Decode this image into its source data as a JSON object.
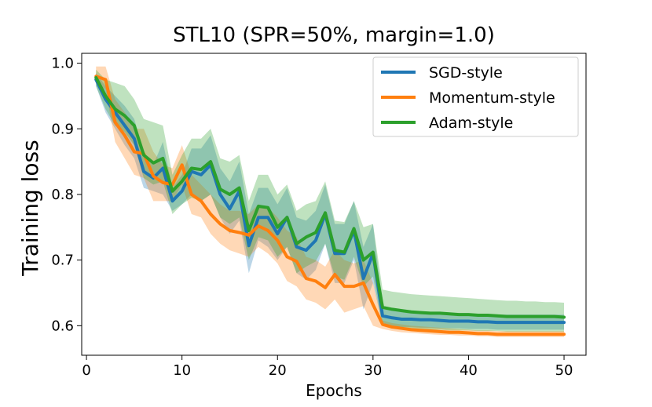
{
  "chart_data": {
    "type": "line",
    "title": "STL10 (SPR=50%, margin=1.0)",
    "xlabel": "Epochs",
    "ylabel": "Training loss",
    "xlim": [
      -0.5,
      52.3
    ],
    "ylim": [
      0.555,
      1.015
    ],
    "xticks": [
      0,
      10,
      20,
      30,
      40,
      50
    ],
    "yticks": [
      0.6,
      0.7,
      0.8,
      0.9,
      1.0
    ],
    "xtick_labels": [
      "0",
      "10",
      "20",
      "30",
      "40",
      "50"
    ],
    "ytick_labels": [
      "0.6",
      "0.7",
      "0.8",
      "0.9",
      "1.0"
    ],
    "grid": false,
    "legend_position": "top-right",
    "x": [
      1,
      2,
      3,
      4,
      5,
      6,
      7,
      8,
      9,
      10,
      11,
      12,
      13,
      14,
      15,
      16,
      17,
      18,
      19,
      20,
      21,
      22,
      23,
      24,
      25,
      26,
      27,
      28,
      29,
      30,
      31,
      32,
      33,
      34,
      35,
      36,
      37,
      38,
      39,
      40,
      41,
      42,
      43,
      44,
      45,
      46,
      47,
      48,
      49,
      50
    ],
    "series": [
      {
        "name": "SGD-style",
        "color": "#1f77b4",
        "values": [
          0.975,
          0.945,
          0.925,
          0.905,
          0.885,
          0.835,
          0.825,
          0.84,
          0.79,
          0.805,
          0.835,
          0.83,
          0.845,
          0.8,
          0.778,
          0.805,
          0.722,
          0.765,
          0.765,
          0.74,
          0.765,
          0.72,
          0.715,
          0.73,
          0.77,
          0.71,
          0.71,
          0.745,
          0.672,
          0.71,
          0.615,
          0.612,
          0.61,
          0.61,
          0.609,
          0.609,
          0.608,
          0.607,
          0.607,
          0.607,
          0.606,
          0.606,
          0.605,
          0.605,
          0.605,
          0.605,
          0.605,
          0.605,
          0.605,
          0.605
        ],
        "lower": [
          0.965,
          0.925,
          0.9,
          0.875,
          0.855,
          0.81,
          0.805,
          0.8,
          0.775,
          0.785,
          0.8,
          0.79,
          0.8,
          0.765,
          0.74,
          0.76,
          0.68,
          0.73,
          0.72,
          0.7,
          0.72,
          0.68,
          0.67,
          0.685,
          0.725,
          0.665,
          0.665,
          0.7,
          0.625,
          0.665,
          0.6,
          0.6,
          0.598,
          0.598,
          0.597,
          0.597,
          0.596,
          0.596,
          0.596,
          0.595,
          0.595,
          0.595,
          0.594,
          0.594,
          0.594,
          0.594,
          0.594,
          0.594,
          0.594,
          0.594
        ],
        "upper": [
          0.985,
          0.965,
          0.95,
          0.935,
          0.915,
          0.865,
          0.845,
          0.88,
          0.81,
          0.83,
          0.87,
          0.87,
          0.89,
          0.84,
          0.82,
          0.85,
          0.77,
          0.81,
          0.81,
          0.785,
          0.81,
          0.765,
          0.76,
          0.775,
          0.815,
          0.755,
          0.755,
          0.79,
          0.72,
          0.755,
          0.63,
          0.625,
          0.622,
          0.622,
          0.621,
          0.621,
          0.62,
          0.619,
          0.619,
          0.619,
          0.618,
          0.618,
          0.617,
          0.617,
          0.617,
          0.617,
          0.617,
          0.617,
          0.617,
          0.617
        ]
      },
      {
        "name": "Momentum-style",
        "color": "#ff7f0e",
        "values": [
          0.98,
          0.975,
          0.91,
          0.89,
          0.865,
          0.862,
          0.828,
          0.818,
          0.815,
          0.845,
          0.8,
          0.79,
          0.77,
          0.755,
          0.745,
          0.742,
          0.738,
          0.752,
          0.745,
          0.73,
          0.705,
          0.698,
          0.672,
          0.668,
          0.658,
          0.678,
          0.66,
          0.66,
          0.665,
          0.632,
          0.602,
          0.598,
          0.596,
          0.594,
          0.593,
          0.592,
          0.591,
          0.59,
          0.59,
          0.589,
          0.588,
          0.588,
          0.587,
          0.587,
          0.587,
          0.587,
          0.587,
          0.587,
          0.587,
          0.587
        ],
        "lower": [
          0.97,
          0.96,
          0.88,
          0.855,
          0.83,
          0.825,
          0.79,
          0.79,
          0.79,
          0.815,
          0.77,
          0.765,
          0.74,
          0.725,
          0.715,
          0.71,
          0.705,
          0.72,
          0.71,
          0.695,
          0.668,
          0.66,
          0.64,
          0.635,
          0.625,
          0.64,
          0.62,
          0.625,
          0.63,
          0.6,
          0.595,
          0.592,
          0.59,
          0.589,
          0.588,
          0.587,
          0.586,
          0.586,
          0.585,
          0.585,
          0.584,
          0.584,
          0.583,
          0.583,
          0.583,
          0.583,
          0.583,
          0.583,
          0.583,
          0.583
        ],
        "upper": [
          0.995,
          0.995,
          0.945,
          0.925,
          0.9,
          0.9,
          0.865,
          0.845,
          0.84,
          0.875,
          0.83,
          0.815,
          0.8,
          0.785,
          0.775,
          0.775,
          0.77,
          0.785,
          0.78,
          0.765,
          0.745,
          0.735,
          0.705,
          0.7,
          0.69,
          0.715,
          0.7,
          0.695,
          0.7,
          0.665,
          0.608,
          0.604,
          0.602,
          0.6,
          0.599,
          0.598,
          0.597,
          0.596,
          0.595,
          0.594,
          0.593,
          0.593,
          0.592,
          0.592,
          0.592,
          0.592,
          0.592,
          0.592,
          0.592,
          0.592
        ]
      },
      {
        "name": "Adam-style",
        "color": "#2ca02c",
        "values": [
          0.978,
          0.95,
          0.93,
          0.92,
          0.905,
          0.86,
          0.848,
          0.855,
          0.805,
          0.82,
          0.84,
          0.838,
          0.85,
          0.808,
          0.8,
          0.81,
          0.745,
          0.782,
          0.78,
          0.75,
          0.765,
          0.725,
          0.735,
          0.742,
          0.772,
          0.715,
          0.712,
          0.748,
          0.7,
          0.712,
          0.628,
          0.625,
          0.623,
          0.621,
          0.62,
          0.619,
          0.619,
          0.618,
          0.617,
          0.617,
          0.616,
          0.616,
          0.615,
          0.614,
          0.614,
          0.614,
          0.614,
          0.614,
          0.614,
          0.613
        ],
        "lower": [
          0.965,
          0.93,
          0.905,
          0.895,
          0.875,
          0.825,
          0.815,
          0.82,
          0.77,
          0.785,
          0.795,
          0.79,
          0.8,
          0.765,
          0.755,
          0.765,
          0.7,
          0.735,
          0.73,
          0.705,
          0.72,
          0.68,
          0.69,
          0.698,
          0.725,
          0.675,
          0.67,
          0.705,
          0.66,
          0.675,
          0.6,
          0.598,
          0.597,
          0.596,
          0.595,
          0.594,
          0.594,
          0.593,
          0.593,
          0.593,
          0.592,
          0.592,
          0.592,
          0.591,
          0.591,
          0.591,
          0.591,
          0.591,
          0.591,
          0.591
        ],
        "upper": [
          0.99,
          0.975,
          0.97,
          0.965,
          0.945,
          0.915,
          0.91,
          0.905,
          0.83,
          0.86,
          0.885,
          0.885,
          0.9,
          0.855,
          0.85,
          0.86,
          0.79,
          0.83,
          0.83,
          0.8,
          0.815,
          0.775,
          0.785,
          0.79,
          0.82,
          0.76,
          0.758,
          0.79,
          0.75,
          0.755,
          0.655,
          0.652,
          0.65,
          0.648,
          0.647,
          0.646,
          0.645,
          0.644,
          0.643,
          0.642,
          0.641,
          0.64,
          0.639,
          0.638,
          0.638,
          0.637,
          0.637,
          0.636,
          0.636,
          0.635
        ]
      }
    ]
  }
}
